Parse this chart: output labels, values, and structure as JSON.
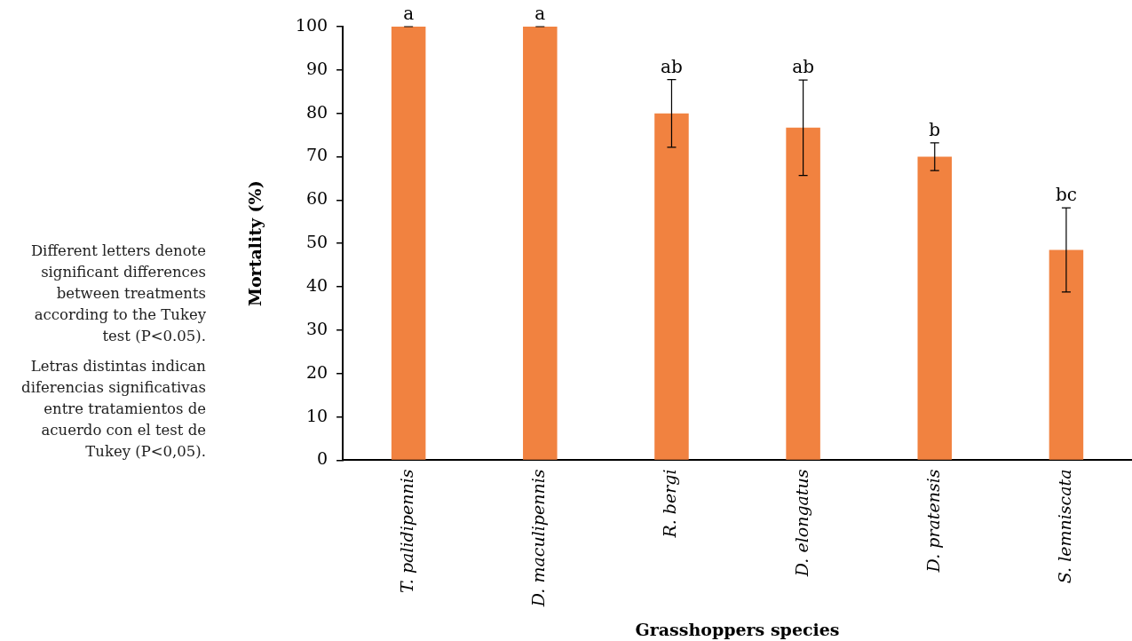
{
  "chart_data": {
    "type": "bar",
    "categories": [
      "T. palidipennis",
      "D. maculipennis",
      "R. bergi",
      "D. elongatus",
      "D. pratensis",
      "S. lemniscata"
    ],
    "values": [
      100,
      100,
      80,
      76.7,
      70,
      48.5
    ],
    "errors": [
      0,
      0,
      7.8,
      11,
      3.2,
      9.7
    ],
    "color": "#f18240",
    "xlabel": "Grasshoppers species",
    "ylabel": "Mortality (%)",
    "ylim": [
      0,
      100
    ],
    "yticks": [
      0,
      10,
      20,
      30,
      40,
      50,
      60,
      70,
      80,
      90,
      100
    ],
    "annotations": [
      "Different letters denote significant differences between treatments according to the Tukey test (P<0.05).",
      "Letras distintas indican diferencias significativas entre tratamientos de acuerdo con el test de Tukey (P<0,05).",
      {
        "text": "a",
        "x": "T. palidipennis",
        "y": 100
      },
      {
        "text": "a",
        "x": "D. maculipennis",
        "y": 100
      },
      {
        "text": "ab",
        "x": "R. bergi",
        "y": 87.8
      },
      {
        "text": "ab",
        "x": "D. elongatus",
        "y": 87.7
      },
      {
        "text": "b",
        "x": "D. pratensis",
        "y": 73.2
      },
      {
        "text": "bc",
        "x": "S. lemniscata",
        "y": 58.2
      }
    ]
  }
}
